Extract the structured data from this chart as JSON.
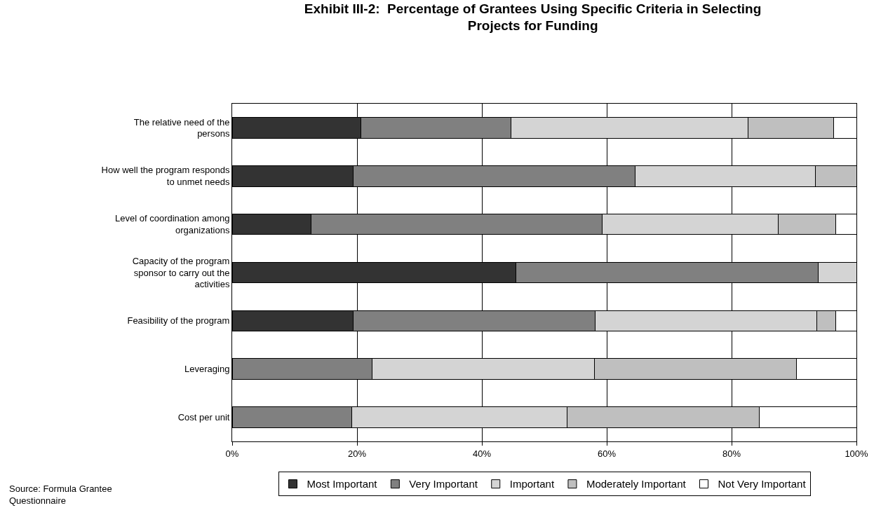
{
  "chart_data": {
    "type": "bar",
    "orientation": "horizontal",
    "stacked": true,
    "title": "Exhibit III-2:  Percentage of Grantees Using Specific Criteria in Selecting Projects for Funding",
    "categories": [
      "The relative need of the persons",
      "How well the program responds to unmet needs",
      "Level of coordination among organizations",
      "Capacity of the program sponsor to carry out the activities",
      "Feasibility of the program",
      "Leveraging",
      "Cost per unit"
    ],
    "series": [
      {
        "name": "Most Important",
        "color": "#333333",
        "values": [
          20.6,
          19.4,
          12.6,
          45.5,
          19.4,
          null,
          null
        ]
      },
      {
        "name": "Very Important",
        "color": "#808080",
        "values": [
          24.1,
          45.1,
          46.7,
          48.4,
          38.8,
          22.4,
          19.2
        ]
      },
      {
        "name": "Important",
        "color": "#d4d4d4",
        "values": [
          37.9,
          28.9,
          28.2,
          6.1,
          35.5,
          35.6,
          34.5
        ]
      },
      {
        "name": "Moderately Important",
        "color": "#bfbfbf",
        "values": [
          13.8,
          6.6,
          9.2,
          null,
          3.0,
          32.4,
          30.7
        ]
      },
      {
        "name": "Not Very Important",
        "color": "#ffffff",
        "values": [
          3.6,
          null,
          3.3,
          null,
          3.3,
          9.6,
          15.6
        ]
      }
    ],
    "xlim": [
      0,
      100
    ],
    "xticks": [
      {
        "value": 0,
        "label": "0%"
      },
      {
        "value": 20,
        "label": "20%"
      },
      {
        "value": 40,
        "label": "40%"
      },
      {
        "value": 60,
        "label": "60%"
      },
      {
        "value": 80,
        "label": "80%"
      },
      {
        "value": 100,
        "label": "100%"
      }
    ],
    "grid": "x",
    "legend": "bottom",
    "annotations": [
      "Source: Formula Grantee Questionnaire"
    ]
  }
}
